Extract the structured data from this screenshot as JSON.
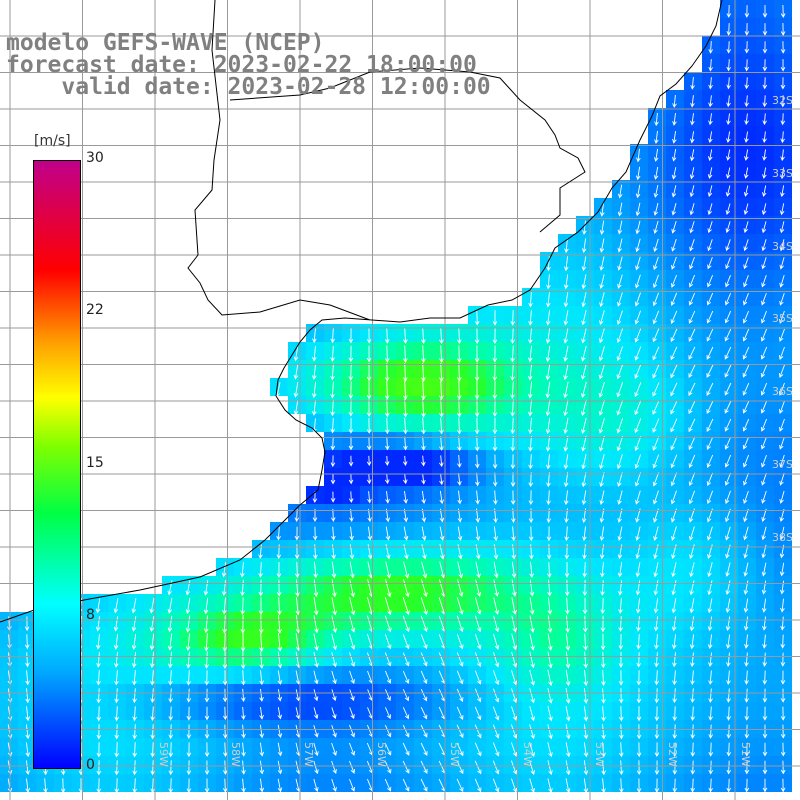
{
  "title": {
    "line1": "modelo GEFS-WAVE (NCEP)",
    "line2": "forecast date: 2023-02-22 18:00:00",
    "line3": "valid date: 2023-02-28 12:00:00"
  },
  "colorbar": {
    "units": "[m/s]",
    "ticks": [
      "30",
      "22",
      "15",
      "8",
      "0"
    ],
    "colors": [
      "#0000ff",
      "#00aaff",
      "#00ffff",
      "#00ff44",
      "#7fff00",
      "#ffff00",
      "#ffa000",
      "#ff0000",
      "#c0008a"
    ]
  },
  "lat_labels": [
    "32S",
    "33S",
    "34S",
    "35S",
    "36S",
    "37S",
    "38S"
  ],
  "lon_labels": [
    "59W",
    "58W",
    "57W",
    "56W",
    "55W",
    "54W",
    "53W",
    "52W",
    "51W"
  ],
  "colors": {
    "land": "#ffffff",
    "coast": "#000000",
    "grid": "#9a9a9a",
    "arrow": "#ffffff",
    "title": "#808080"
  }
}
